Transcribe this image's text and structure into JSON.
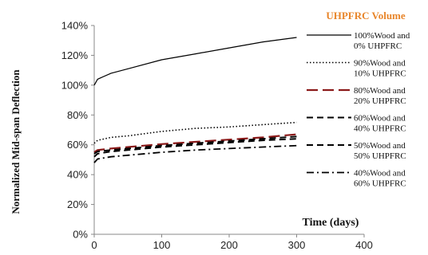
{
  "chart_data": {
    "type": "line",
    "title": "",
    "xlabel": "Time (days)",
    "ylabel": "Normalized Mid-span Deflection",
    "xlim": [
      0,
      400
    ],
    "ylim": [
      0,
      140
    ],
    "x_ticks": [
      0,
      100,
      200,
      300,
      400
    ],
    "y_ticks": [
      0,
      20,
      40,
      60,
      80,
      100,
      120,
      140
    ],
    "y_tick_labels": [
      "0%",
      "20%",
      "40%",
      "60%",
      "80%",
      "100%",
      "120%",
      "140%"
    ],
    "x_tick_labels": [
      "0",
      "100",
      "200",
      "300",
      "400"
    ],
    "grid": false,
    "legend": {
      "title": "UHPFRC Volume",
      "title_color": "#e8852a",
      "placement": "right"
    },
    "x": [
      0,
      5,
      25,
      50,
      100,
      150,
      200,
      250,
      300
    ],
    "series": [
      {
        "name_lines": [
          "100%Wood and",
          "0% UHPFRC"
        ],
        "color": "#000000",
        "style": "solid",
        "values": [
          100,
          104,
          108,
          111,
          117,
          121,
          125,
          129,
          132
        ]
      },
      {
        "name_lines": [
          "90%Wood and",
          "10% UHPFRC"
        ],
        "color": "#000000",
        "style": "dotted",
        "values": [
          61,
          63,
          65,
          66,
          69,
          71,
          72,
          73.5,
          75
        ]
      },
      {
        "name_lines": [
          "80%Wood and",
          "20% UHPFRC"
        ],
        "color": "#8b1a1a",
        "style": "longdash",
        "values": [
          55,
          56.5,
          57.5,
          58.5,
          60.5,
          62,
          63.5,
          65,
          67
        ]
      },
      {
        "name_lines": [
          "60%Wood and",
          "40% UHPFRC"
        ],
        "color": "#000000",
        "style": "dash",
        "values": [
          54,
          55.5,
          56.5,
          57.5,
          59.5,
          61,
          62.5,
          64,
          65.5
        ]
      },
      {
        "name_lines": [
          "50%Wood and",
          "50% UHPFRC"
        ],
        "color": "#000000",
        "style": "dash",
        "values": [
          52,
          54,
          55.5,
          56.5,
          58.5,
          60,
          61.5,
          63,
          64
        ]
      },
      {
        "name_lines": [
          "40%Wood and",
          "60% UHPFRC"
        ],
        "color": "#000000",
        "style": "dashdot",
        "values": [
          48,
          50.5,
          52,
          53,
          55,
          56.5,
          57.5,
          58.5,
          59.5
        ]
      }
    ]
  }
}
